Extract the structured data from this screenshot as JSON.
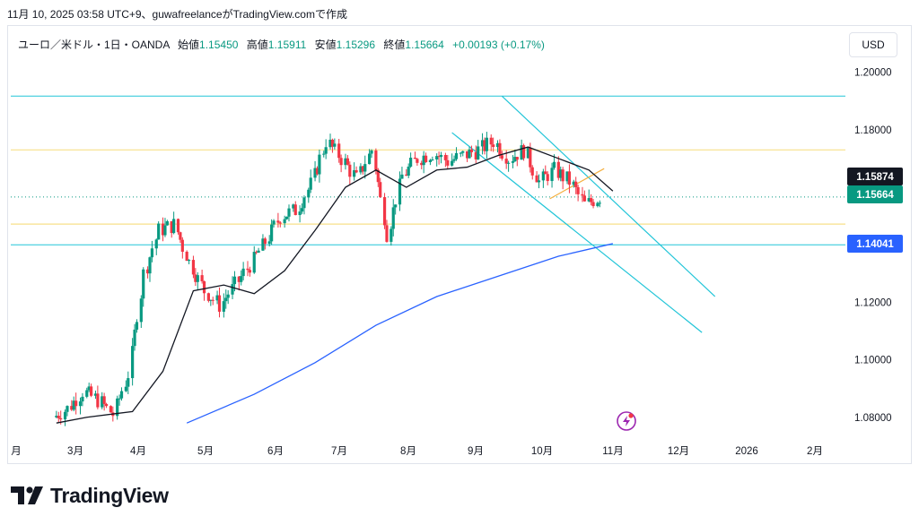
{
  "header": {
    "timestamp_text": "11月 10, 2025 03:58 UTC+9、guwafreelanceがTradingView.comで作成"
  },
  "legend": {
    "symbol": "ユーロ／米ドル・1日・OANDA",
    "open_label": "始値",
    "open": "1.15450",
    "high_label": "高値",
    "high": "1.15911",
    "low_label": "安値",
    "low": "1.15296",
    "close_label": "終値",
    "close": "1.15664",
    "change": "+0.00193 (+0.17%)"
  },
  "currency_button": "USD",
  "brand": {
    "name": "TradingView"
  },
  "colors": {
    "up": "#089981",
    "down": "#f23645",
    "sma_short": "#131722",
    "sma_long": "#2962ff",
    "cyan": "#22c5d8",
    "yellow": "#f7e08a",
    "badge_black": "#131722",
    "badge_green": "#089981",
    "badge_blue": "#2962ff"
  },
  "chart_data": {
    "type": "candlestick",
    "y_ticks": [
      "1.20000",
      "1.18000",
      "1.12000",
      "1.10000",
      "1.08000"
    ],
    "x_ticks": [
      "月",
      "3月",
      "4月",
      "5月",
      "6月",
      "7月",
      "8月",
      "9月",
      "10月",
      "11月",
      "12月",
      "2026",
      "2月"
    ],
    "price_badges": [
      "1.15874",
      "1.15664",
      "1.14041"
    ],
    "y_range": [
      1.0765,
      1.2027
    ],
    "x_range": [
      "2025-02-03",
      "2026-02-22"
    ],
    "horizontal_levels": {
      "cyan": [
        1.1917,
        1.14
      ],
      "yellow": [
        1.173,
        1.1472
      ]
    },
    "channel_lines": [
      {
        "from": [
          "2025-09-17",
          1.1917
        ],
        "to": [
          "2025-12-24",
          1.122
        ]
      },
      {
        "from": [
          "2025-08-25",
          1.179
        ],
        "to": [
          "2025-12-18",
          1.1095
        ]
      }
    ],
    "trend_segment": {
      "from": [
        "2025-10-09",
        1.156
      ],
      "to": [
        "2025-11-03",
        1.1665
      ]
    },
    "sma_short_last": 1.15874,
    "sma_long_last": 1.14041,
    "last_close": 1.15664,
    "closes_weekly": [
      {
        "date": "2025-02-24",
        "close": 1.08
      },
      {
        "date": "2025-03-03",
        "close": 1.083
      },
      {
        "date": "2025-03-10",
        "close": 1.089
      },
      {
        "date": "2025-03-17",
        "close": 1.086
      },
      {
        "date": "2025-03-24",
        "close": 1.081
      },
      {
        "date": "2025-03-31",
        "close": 1.095
      },
      {
        "date": "2025-04-07",
        "close": 1.13
      },
      {
        "date": "2025-04-14",
        "close": 1.145
      },
      {
        "date": "2025-04-21",
        "close": 1.147
      },
      {
        "date": "2025-04-28",
        "close": 1.134
      },
      {
        "date": "2025-05-05",
        "close": 1.124
      },
      {
        "date": "2025-05-12",
        "close": 1.119
      },
      {
        "date": "2025-05-19",
        "close": 1.126
      },
      {
        "date": "2025-05-26",
        "close": 1.133
      },
      {
        "date": "2025-06-02",
        "close": 1.141
      },
      {
        "date": "2025-06-09",
        "close": 1.15
      },
      {
        "date": "2025-06-16",
        "close": 1.152
      },
      {
        "date": "2025-06-23",
        "close": 1.161
      },
      {
        "date": "2025-06-30",
        "close": 1.176
      },
      {
        "date": "2025-07-07",
        "close": 1.17
      },
      {
        "date": "2025-07-14",
        "close": 1.163
      },
      {
        "date": "2025-07-21",
        "close": 1.173
      },
      {
        "date": "2025-07-28",
        "close": 1.144
      },
      {
        "date": "2025-08-04",
        "close": 1.164
      },
      {
        "date": "2025-08-11",
        "close": 1.17
      },
      {
        "date": "2025-08-18",
        "close": 1.172
      },
      {
        "date": "2025-08-25",
        "close": 1.169
      },
      {
        "date": "2025-09-01",
        "close": 1.171
      },
      {
        "date": "2025-09-08",
        "close": 1.173
      },
      {
        "date": "2025-09-15",
        "close": 1.176
      },
      {
        "date": "2025-09-22",
        "close": 1.17
      },
      {
        "date": "2025-09-29",
        "close": 1.173
      },
      {
        "date": "2025-10-06",
        "close": 1.162
      },
      {
        "date": "2025-10-13",
        "close": 1.166
      },
      {
        "date": "2025-10-20",
        "close": 1.162
      },
      {
        "date": "2025-10-27",
        "close": 1.154
      },
      {
        "date": "2025-11-03",
        "close": 1.1566
      }
    ],
    "sma_short_weekly": [
      {
        "date": "2025-02-24",
        "value": 1.078
      },
      {
        "date": "2025-03-10",
        "value": 1.08
      },
      {
        "date": "2025-03-31",
        "value": 1.082
      },
      {
        "date": "2025-04-14",
        "value": 1.096
      },
      {
        "date": "2025-04-28",
        "value": 1.124
      },
      {
        "date": "2025-05-12",
        "value": 1.126
      },
      {
        "date": "2025-05-26",
        "value": 1.123
      },
      {
        "date": "2025-06-09",
        "value": 1.131
      },
      {
        "date": "2025-06-23",
        "value": 1.145
      },
      {
        "date": "2025-07-07",
        "value": 1.16
      },
      {
        "date": "2025-07-21",
        "value": 1.166
      },
      {
        "date": "2025-08-04",
        "value": 1.16
      },
      {
        "date": "2025-08-18",
        "value": 1.166
      },
      {
        "date": "2025-09-01",
        "value": 1.167
      },
      {
        "date": "2025-09-15",
        "value": 1.171
      },
      {
        "date": "2025-09-29",
        "value": 1.174
      },
      {
        "date": "2025-10-13",
        "value": 1.17
      },
      {
        "date": "2025-10-27",
        "value": 1.166
      },
      {
        "date": "2025-11-07",
        "value": 1.1587
      }
    ],
    "sma_long_weekly": [
      {
        "date": "2025-04-25",
        "value": 1.078
      },
      {
        "date": "2025-05-26",
        "value": 1.088
      },
      {
        "date": "2025-06-23",
        "value": 1.099
      },
      {
        "date": "2025-07-21",
        "value": 1.112
      },
      {
        "date": "2025-08-18",
        "value": 1.122
      },
      {
        "date": "2025-09-15",
        "value": 1.129
      },
      {
        "date": "2025-10-13",
        "value": 1.136
      },
      {
        "date": "2025-11-07",
        "value": 1.1404
      }
    ]
  }
}
